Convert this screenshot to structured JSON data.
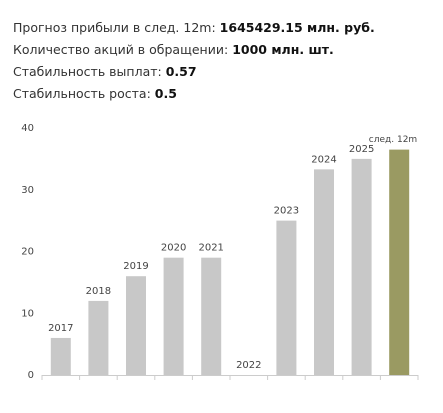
{
  "stats": [
    {
      "label": "Прогноз прибыли в след. 12m:",
      "value": "1645429.15 млн. руб."
    },
    {
      "label": "Количество акций в обращении:",
      "value": "1000 млн. шт."
    },
    {
      "label": "Стабильность выплат:",
      "value": "0.57"
    },
    {
      "label": "Стабильность роста:",
      "value": "0.5"
    }
  ],
  "chart_data": {
    "type": "bar",
    "categories": [
      "2017",
      "2018",
      "2019",
      "2020",
      "2021",
      "2022",
      "2023",
      "2024",
      "2025",
      "след. 12m"
    ],
    "values": [
      6,
      12,
      16,
      19,
      19,
      0,
      25,
      33.3,
      35,
      36.5
    ],
    "colors": [
      "#c8c8c8",
      "#c8c8c8",
      "#c8c8c8",
      "#c8c8c8",
      "#c8c8c8",
      "#c8c8c8",
      "#c8c8c8",
      "#c8c8c8",
      "#c8c8c8",
      "#9a9a62"
    ],
    "ylim": [
      0,
      40
    ],
    "yticks": [
      0,
      10,
      20,
      30,
      40
    ],
    "grid": false
  }
}
